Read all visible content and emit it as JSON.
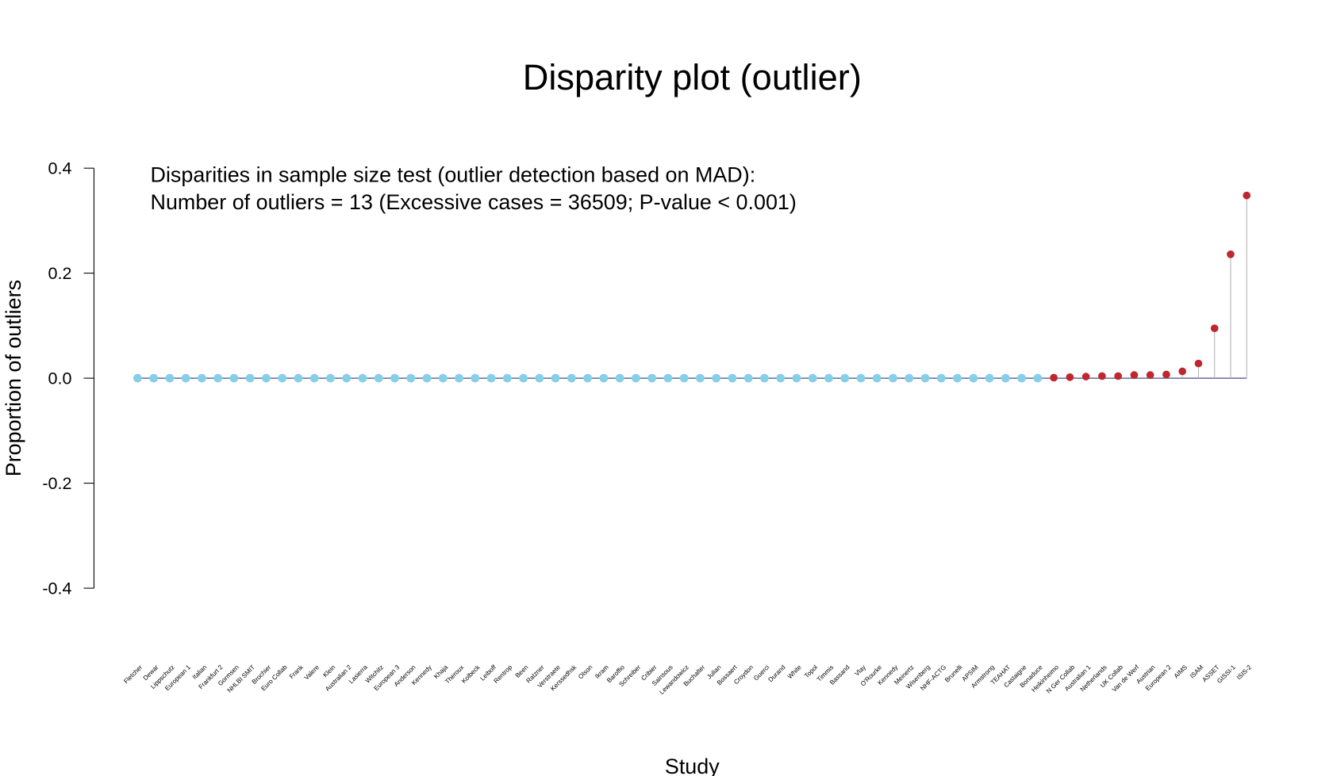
{
  "chart_data": {
    "type": "lollipop",
    "title": "Disparity plot (outlier)",
    "annotations": [
      "Disparities in sample size test (outlier detection based on MAD):",
      "Number of outliers = 13 (Excessive cases = 36509; P-value < 0.001)"
    ],
    "x_label": "Study",
    "y_label": "Proportion of outliers",
    "categories": [
      "Fletcher",
      "Dewar",
      "Lippschutz",
      "European 1",
      "Italian",
      "Frankfurt 2",
      "Gormsen",
      "NHLBI SMIT",
      "Brochier",
      "Euro Collab",
      "Frank",
      "Valere",
      "Klein",
      "Australian 2",
      "Lasierra",
      "Witchitz",
      "European 3",
      "Anderson",
      "Kennedy",
      "Khaja",
      "Theroux",
      "Kolbeck",
      "Leiboff",
      "Rentrop",
      "Been",
      "Ratzner",
      "Verstraete",
      "Kerssedhsk",
      "Olson",
      "Ikram",
      "Baroffio",
      "Schreiber",
      "Cribier",
      "Sainsous",
      "Lewandowicz",
      "Buchalter",
      "Julian",
      "Bossaert",
      "Croydon",
      "Guerci",
      "Durand",
      "White",
      "Topol",
      "Timmis",
      "Bassand",
      "Vlay",
      "O'Rourke",
      "Kennedy",
      "Meinertz",
      "Wisenberg",
      "NHF-ACTG",
      "Brunelli",
      "APSIM",
      "Armstrong",
      "TEAHAT",
      "Castaigne",
      "Bonaduce",
      "Heikinheimo",
      "N Ger Collab",
      "Australian 1",
      "Netherlands",
      "UK Collab",
      "Van de Werf",
      "Austrian",
      "European 2",
      "AIMS",
      "ISAM",
      "ASSET",
      "GISSI-1",
      "ISIS-2"
    ],
    "values": [
      0,
      0,
      0,
      0,
      0,
      0,
      0,
      0,
      0,
      0,
      0,
      0,
      0,
      0,
      0,
      0,
      0,
      0,
      0,
      0,
      0,
      0,
      0,
      0,
      0,
      0,
      0,
      0,
      0,
      0,
      0,
      0,
      0,
      0,
      0,
      0,
      0,
      0,
      0,
      0,
      0,
      0,
      0,
      0,
      0,
      0,
      0,
      0,
      0,
      0,
      0,
      0,
      0,
      0,
      0,
      0,
      0,
      0.001,
      0.002,
      0.003,
      0.004,
      0.004,
      0.006,
      0.006,
      0.007,
      0.013,
      0.028,
      0.095,
      0.236,
      0.348
    ],
    "color": "#87ceeb",
    "outlier_color": "#c0262d",
    "line_color": "#4b4b8c",
    "stem_color": "#b4b4b4",
    "ylim": [
      -0.4,
      0.4
    ],
    "yticks": [
      -0.4,
      -0.2,
      {
        "value": 0,
        "label": "0.0"
      },
      0.2,
      0.4
    ]
  }
}
